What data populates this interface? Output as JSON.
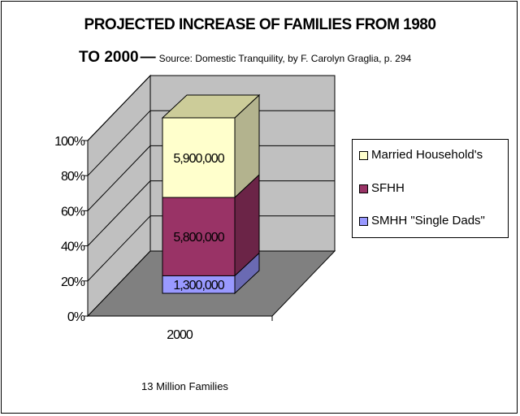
{
  "title_line1": "PROJECTED INCREASE OF FAMILIES FROM 1980",
  "title_line2": "TO 2000",
  "source": "Source: Domestic Tranquility, by F. Carolyn Graglia, p. 294",
  "footnote": "13 Million Families",
  "chart_data": {
    "type": "bar",
    "stacked": "percent",
    "categories": [
      "2000"
    ],
    "series": [
      {
        "name": "SMHH \"Single Dads\"",
        "values": [
          1300000
        ],
        "label": "1,300,000",
        "color": "#9999ff",
        "side": "#6a6ab3",
        "top": "#b3b3ff"
      },
      {
        "name": "SFHH",
        "values": [
          5800000
        ],
        "label": "5,800,000",
        "color": "#993366",
        "side": "#6b2447",
        "top": "#b35a85"
      },
      {
        "name": "Married Household's",
        "values": [
          5900000
        ],
        "label": "5,900,000",
        "color": "#ffffcc",
        "side": "#b3b38e",
        "top": "#cccc99"
      }
    ],
    "ylim": [
      0,
      100
    ],
    "yticks": [
      "0%",
      "20%",
      "40%",
      "60%",
      "80%",
      "100%"
    ],
    "grid": true,
    "legend_position": "right"
  }
}
